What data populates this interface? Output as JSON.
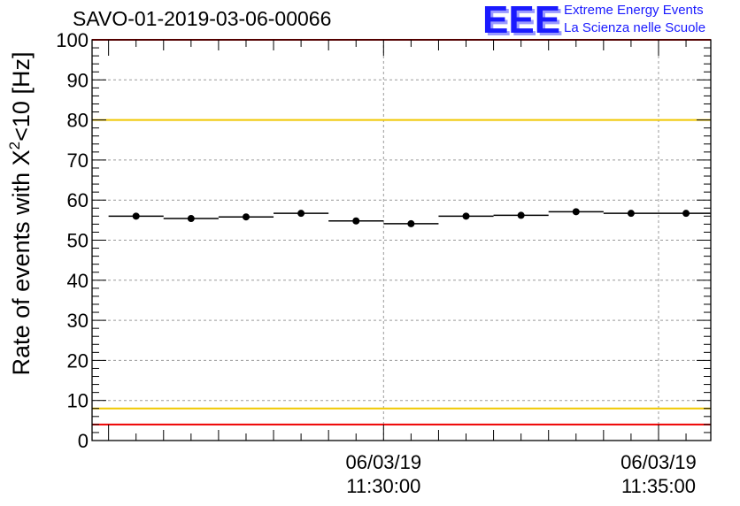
{
  "header": {
    "run_title": "SAVO-01-2019-03-06-00066",
    "logo_letters": "EEE",
    "logo_line1": "Extreme Energy Events",
    "logo_line2": "La Scienza nelle Scuole"
  },
  "chart_data": {
    "type": "scatter",
    "title": "SAVO-01-2019-03-06-00066",
    "ylabel": "Rate of events with X²<10 [Hz]",
    "ylabel_main": "Rate of events with X",
    "ylabel_sup": "2",
    "ylabel_tail": "<10 [Hz]",
    "xlabel": "",
    "ylim": [
      0,
      100
    ],
    "y_ticks": [
      "0",
      "10",
      "20",
      "30",
      "40",
      "50",
      "60",
      "70",
      "80",
      "90",
      "100"
    ],
    "x_tick_labels": [
      {
        "date": "06/03/19",
        "time": "11:30:00",
        "minute": 5.0
      },
      {
        "date": "06/03/19",
        "time": "11:35:00",
        "minute": 10.0
      }
    ],
    "xlim_minutes": [
      -0.3,
      10.95
    ],
    "x_unit": "minutes after 11:25:00",
    "bin_width_minutes": 1.0,
    "points": [
      {
        "x": 0.5,
        "y": 56.0
      },
      {
        "x": 1.5,
        "y": 55.4
      },
      {
        "x": 2.5,
        "y": 55.8
      },
      {
        "x": 3.5,
        "y": 56.7
      },
      {
        "x": 4.5,
        "y": 54.8
      },
      {
        "x": 5.5,
        "y": 54.1
      },
      {
        "x": 6.5,
        "y": 56.0
      },
      {
        "x": 7.5,
        "y": 56.2
      },
      {
        "x": 8.5,
        "y": 57.1
      },
      {
        "x": 9.5,
        "y": 56.7
      },
      {
        "x": 10.5,
        "y": 56.7
      }
    ],
    "threshold_lines": [
      {
        "name": "upper-warning",
        "y": 80,
        "color": "#f0c800"
      },
      {
        "name": "lower-warning",
        "y": 8,
        "color": "#f0c800"
      },
      {
        "name": "lower-alarm",
        "y": 4,
        "color": "#ee0000"
      },
      {
        "name": "upper-alarm",
        "y": 100,
        "color": "#ee0000"
      }
    ],
    "grid": true
  },
  "colors": {
    "logo_blue": "#1a1aff",
    "frame": "#000000",
    "grid": "#9a9a9a"
  }
}
